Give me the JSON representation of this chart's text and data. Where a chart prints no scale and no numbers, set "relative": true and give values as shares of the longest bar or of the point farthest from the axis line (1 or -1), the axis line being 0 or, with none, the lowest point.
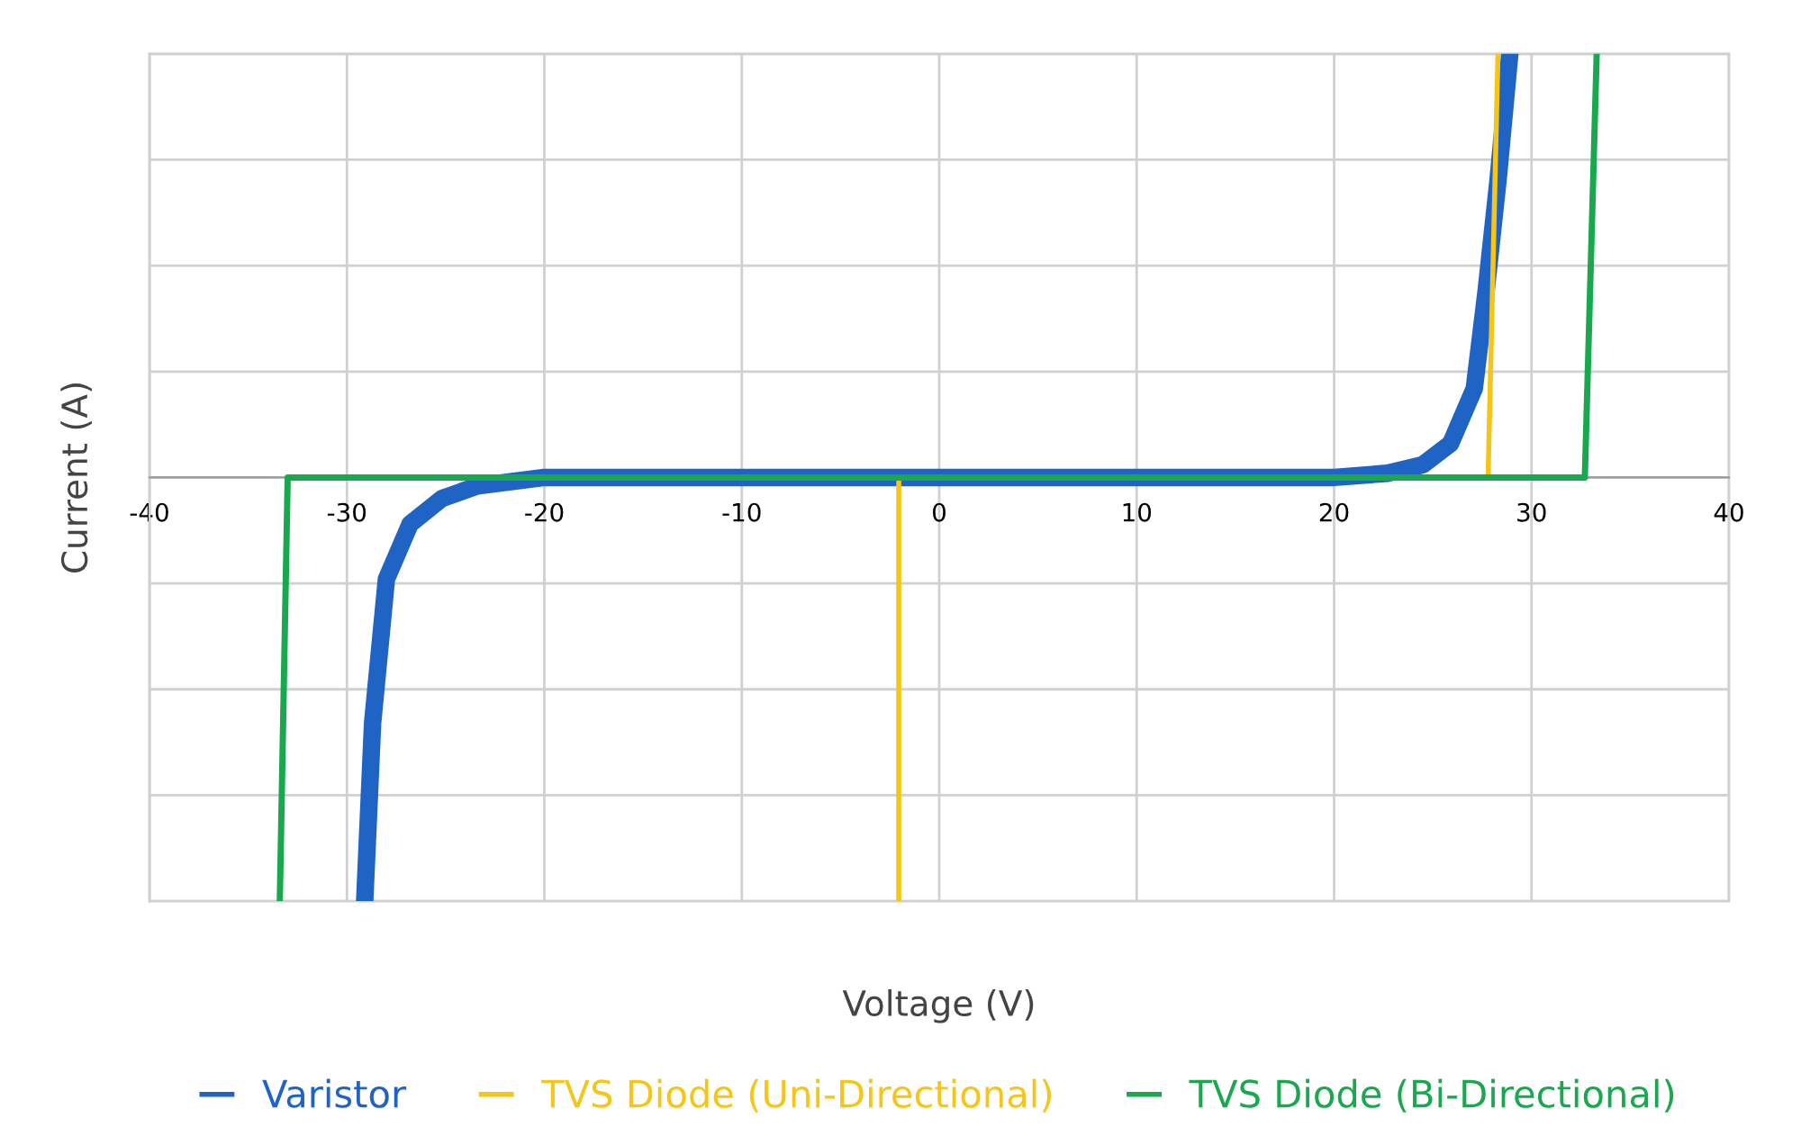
{
  "chart_data": {
    "type": "line",
    "relative": true,
    "xlabel": "Voltage (V)",
    "ylabel": "Current (A)",
    "xlim": [
      -40,
      40
    ],
    "xticks": [
      -40,
      -30,
      -20,
      -10,
      0,
      10,
      20,
      30,
      40
    ],
    "grid": true,
    "legend": "bottom",
    "series": [
      {
        "name": "Varistor",
        "color": "#1f64c4",
        "x": [
          -29.1,
          -28.7,
          -28.0,
          -26.8,
          -25.2,
          -23.4,
          -20,
          0,
          20,
          22.7,
          24.5,
          25.9,
          27.1,
          27.7,
          28.3,
          28.9
        ],
        "values": [
          -1,
          -0.58,
          -0.24,
          -0.11,
          -0.05,
          -0.02,
          0,
          0,
          0,
          0.01,
          0.03,
          0.08,
          0.21,
          0.44,
          0.7,
          1
        ]
      },
      {
        "name": "TVS Diode (Uni-Directional)",
        "color": "#f5c518",
        "x": [
          -2.05,
          -2.05,
          27.8,
          28.3
        ],
        "values": [
          -1,
          0,
          0,
          1
        ]
      },
      {
        "name": "TVS Diode (Bi-Directional)",
        "color": "#1aa84f",
        "x": [
          -33.4,
          -33.0,
          32.7,
          33.3
        ],
        "values": [
          -1,
          0,
          0,
          1
        ]
      }
    ]
  }
}
